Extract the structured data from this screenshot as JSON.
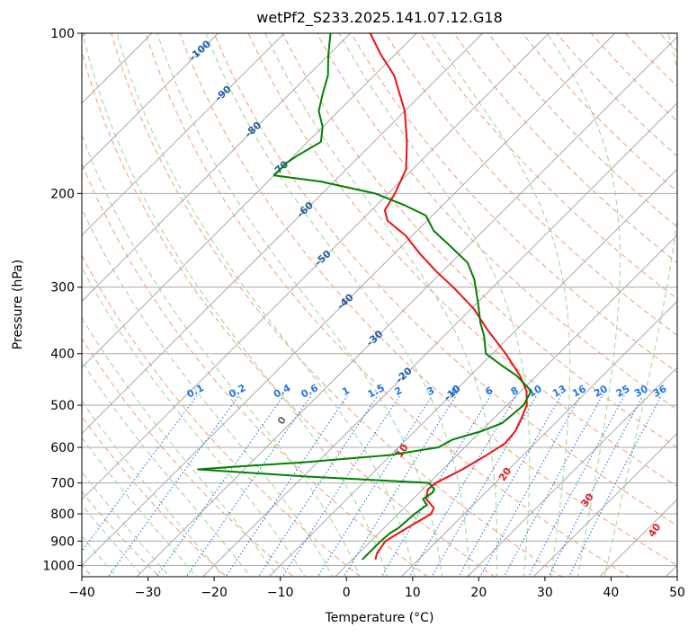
{
  "chart_data": {
    "type": "skew-t log-p",
    "title": "wetPf2_S233.2025.141.07.12.G18",
    "xlabel": "Temperature (°C)",
    "ylabel": "Pressure (hPa)",
    "xlim": [
      -40,
      50
    ],
    "ylim": [
      1050,
      100
    ],
    "y_scale": "log",
    "grid": true,
    "x_ticks": [
      "−40",
      "−30",
      "−20",
      "−10",
      "0",
      "10",
      "20",
      "30",
      "40",
      "50"
    ],
    "y_ticks": [
      "100",
      "200",
      "300",
      "400",
      "500",
      "600",
      "700",
      "800",
      "900",
      "1000"
    ],
    "colors": {
      "temperature": "#ee1111",
      "dewpoint": "#008000",
      "grid": "#aaaaaa",
      "dry_adiabat": "#f4a582",
      "moist_adiabat": "#a6d8a0",
      "mixing_ratio": "#1f77e6",
      "isotherm_label": "#1f5fa0",
      "moist_label": "#dd2222"
    },
    "series": [
      {
        "key": "temperature",
        "p": [
          975,
          950,
          900,
          850,
          800,
          780,
          750,
          720,
          700,
          660,
          620,
          590,
          560,
          530,
          500,
          470,
          440,
          400,
          360,
          330,
          300,
          280,
          260,
          240,
          225,
          215,
          200,
          180,
          160,
          140,
          120,
          110,
          100
        ],
        "t": [
          3.5,
          2.8,
          2.2,
          3.5,
          5,
          4.5,
          2,
          0.8,
          1,
          3,
          4.5,
          5.5,
          5.2,
          4.2,
          3,
          0.8,
          -2.5,
          -8,
          -14.5,
          -19.5,
          -26,
          -31,
          -36,
          -41,
          -46,
          -48,
          -49,
          -51,
          -55,
          -60,
          -67,
          -72,
          -77
        ]
      },
      {
        "key": "dewpoint",
        "p": [
          975,
          950,
          900,
          870,
          850,
          800,
          770,
          750,
          730,
          720,
          700,
          680,
          660,
          650,
          640,
          620,
          600,
          580,
          560,
          540,
          500,
          470,
          440,
          420,
          400,
          370,
          350,
          320,
          290,
          270,
          250,
          235,
          220,
          210,
          200,
          190,
          185,
          180,
          175,
          170,
          160,
          150,
          140,
          130,
          120,
          110,
          100
        ],
        "t": [
          1.5,
          1.5,
          1.5,
          1.7,
          2.2,
          2.5,
          3,
          1.5,
          2,
          1.8,
          0,
          -20,
          -37,
          -30,
          -22,
          -10,
          -4,
          -3,
          0,
          2,
          2.5,
          1.5,
          -3,
          -7,
          -11,
          -14,
          -16.5,
          -20,
          -24,
          -27.5,
          -33,
          -37.5,
          -41,
          -46,
          -52,
          -62,
          -70,
          -70,
          -70,
          -69.5,
          -68,
          -70,
          -73,
          -75,
          -77,
          -80,
          -83
        ]
      }
    ],
    "isotherm_labels": [
      "-100",
      "-90",
      "-80",
      "-70",
      "-60",
      "-50",
      "-40",
      "-30",
      "-20",
      "-10"
    ],
    "mixing_ratio_labels": [
      "0.1",
      "0.2",
      "0.4",
      "0.6",
      "1",
      "1.5",
      "2",
      "3",
      "4",
      "6",
      "8",
      "10",
      "13",
      "16",
      "20",
      "25",
      "30",
      "36"
    ],
    "moist_adiabat_labels": [
      "0",
      "10",
      "20",
      "30",
      "40"
    ]
  }
}
